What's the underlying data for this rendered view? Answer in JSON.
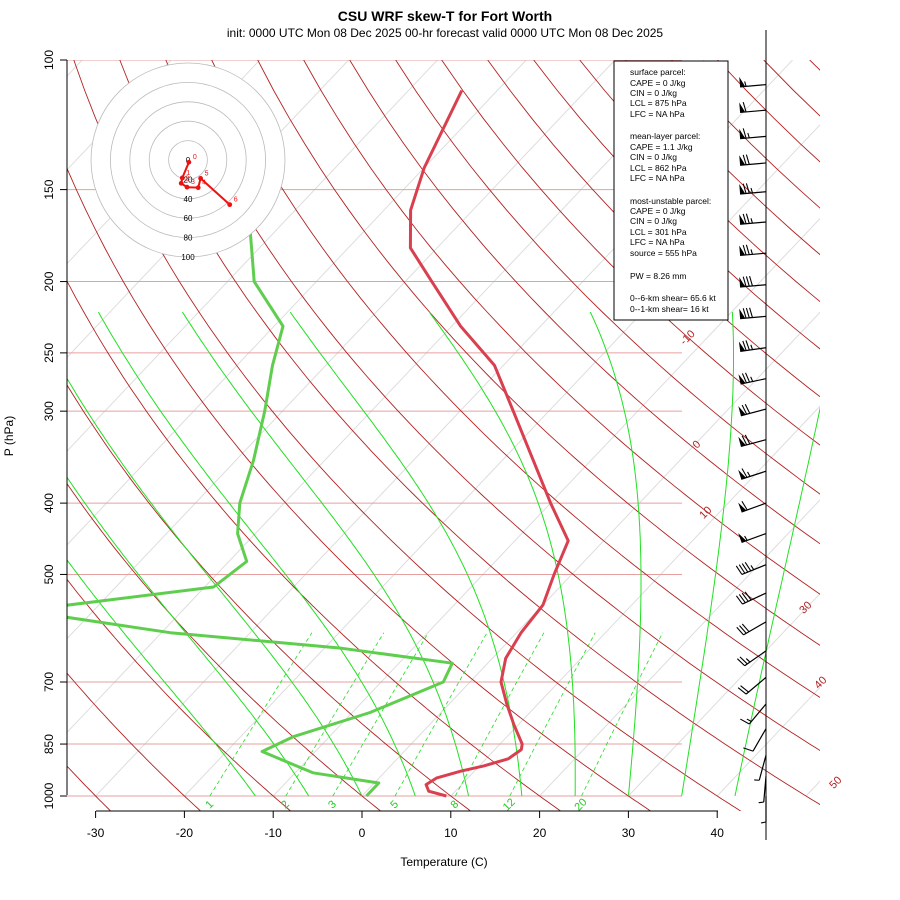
{
  "title": "CSU WRF skew-T for Fort Worth",
  "subtitle": "init: 0000 UTC Mon 08 Dec 2025     00-hr forecast valid 0000 UTC Mon 08 Dec 2025",
  "colors": {
    "temperature": "#d9404f",
    "dewpoint": "#5fce4e",
    "dry_adiabat": "#b22222",
    "isotherm": "#dddddd",
    "moist_adiabat": "#22e022",
    "mixing_ratio": "#22dd22",
    "isobar": "#e6a0a0",
    "hodograph": "#ee1111"
  },
  "chart_data": {
    "type": "line",
    "title": "CSU WRF skew-T for Fort Worth",
    "xlabel": "Temperature (C)",
    "ylabel": "P (hPa)",
    "xlim": [
      -33,
      45
    ],
    "ylim": [
      1000,
      100
    ],
    "x_ticks": [
      -30,
      -20,
      -10,
      0,
      10,
      20,
      30,
      40
    ],
    "y_ticks": [
      1000,
      850,
      700,
      500,
      400,
      300,
      250,
      200,
      150,
      100
    ],
    "series": [
      {
        "key": "temperature",
        "points": [
          [
            1000,
            9.5
          ],
          [
            985,
            7
          ],
          [
            965,
            6
          ],
          [
            945,
            6.5
          ],
          [
            925,
            8.5
          ],
          [
            910,
            10.5
          ],
          [
            890,
            12.5
          ],
          [
            865,
            13
          ],
          [
            850,
            12.5
          ],
          [
            800,
            9.5
          ],
          [
            750,
            6.5
          ],
          [
            700,
            3.5
          ],
          [
            650,
            1.5
          ],
          [
            600,
            0.5
          ],
          [
            550,
            0
          ],
          [
            500,
            -2
          ],
          [
            450,
            -4
          ],
          [
            400,
            -10
          ],
          [
            350,
            -16.5
          ],
          [
            300,
            -24
          ],
          [
            260,
            -31
          ],
          [
            230,
            -39
          ],
          [
            200,
            -47
          ],
          [
            180,
            -53
          ],
          [
            160,
            -57
          ],
          [
            140,
            -60
          ],
          [
            110,
            -64
          ]
        ]
      },
      {
        "key": "dewpoint",
        "points": [
          [
            1000,
            0.5
          ],
          [
            960,
            0.5
          ],
          [
            930,
            -8
          ],
          [
            870,
            -16
          ],
          [
            830,
            -14
          ],
          [
            770,
            -8
          ],
          [
            700,
            -3
          ],
          [
            660,
            -4
          ],
          [
            630,
            -18
          ],
          [
            600,
            -39
          ],
          [
            560,
            -58
          ],
          [
            520,
            -39
          ],
          [
            480,
            -38
          ],
          [
            440,
            -42
          ],
          [
            400,
            -45
          ],
          [
            350,
            -48
          ],
          [
            300,
            -52
          ],
          [
            260,
            -56
          ],
          [
            230,
            -59
          ],
          [
            200,
            -67
          ],
          [
            170,
            -73
          ]
        ]
      }
    ],
    "dry_adiabat_labels": [
      -10,
      0,
      10,
      30,
      40,
      50
    ],
    "mixing_ratio_labels": [
      "1",
      "2",
      "3",
      "5",
      "8",
      "12",
      "20"
    ],
    "hodograph": {
      "rings": [
        "0",
        "20",
        "40",
        "60",
        "80",
        "100"
      ],
      "heights": [
        "0",
        "1",
        "2",
        "3",
        "4",
        "5",
        "6"
      ],
      "points": [
        [
          0.9,
          2.3
        ],
        [
          -5.9,
          18.5
        ],
        [
          -7,
          24
        ],
        [
          -1,
          28
        ],
        [
          10.5,
          28.5
        ],
        [
          13,
          19
        ],
        [
          43,
          46
        ]
      ]
    },
    "wind_barbs": {
      "p": [
        108,
        117,
        127,
        138,
        151,
        166,
        183,
        202,
        223,
        246,
        271,
        298,
        328,
        362,
        400,
        440,
        485,
        530,
        580,
        635,
        690,
        750,
        810,
        880,
        940,
        1000
      ],
      "speed_kt": [
        55,
        60,
        65,
        70,
        75,
        75,
        75,
        80,
        80,
        75,
        75,
        70,
        70,
        65,
        60,
        55,
        45,
        40,
        30,
        25,
        20,
        15,
        12,
        8,
        5,
        5
      ],
      "dir_deg": [
        265,
        265,
        265,
        265,
        265,
        265,
        265,
        265,
        265,
        262,
        258,
        255,
        255,
        252,
        250,
        250,
        248,
        245,
        240,
        235,
        230,
        220,
        210,
        195,
        185,
        180
      ]
    }
  },
  "info_box": {
    "surface_title": "surface parcel:",
    "surface_cape": "CAPE = 0 J/kg",
    "surface_cin": "CIN = 0 J/kg",
    "surface_lcl": "LCL = 875 hPa",
    "surface_lfc": "LFC = NA hPa",
    "meanlayer_title": "mean-layer parcel:",
    "meanlayer_cape": "CAPE = 1.1 J/kg",
    "meanlayer_cin": "CIN = 0 J/kg",
    "meanlayer_lcl": "LCL = 862 hPa",
    "meanlayer_lfc": "LFC = NA hPa",
    "mu_title": "most-unstable parcel:",
    "mu_cape": "CAPE = 0 J/kg",
    "mu_cin": "CIN = 0 J/kg",
    "mu_lcl": "LCL = 301 hPa",
    "mu_lfc": "LFC = NA hPa",
    "mu_source": "source = 555 hPa",
    "pw": "PW =  8.26 mm",
    "shear06": "0--6-km shear= 65.6 kt",
    "shear01": "0--1-km shear= 16 kt"
  }
}
